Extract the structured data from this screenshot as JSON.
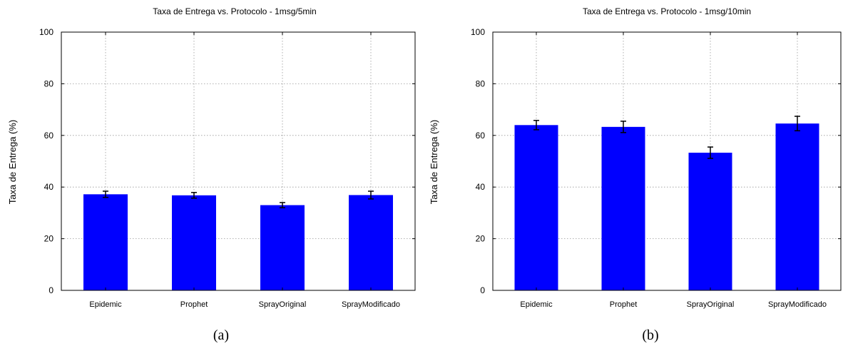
{
  "chart_data": [
    {
      "type": "bar",
      "title": "Taxa de Entrega vs. Protocolo - 1msg/5min",
      "xlabel": "",
      "ylabel": "Taxa de Entrega (%)",
      "caption": "(a)",
      "categories": [
        "Epidemic",
        "Prophet",
        "SprayOriginal",
        "SprayModificado"
      ],
      "values": [
        37.2,
        36.8,
        33.0,
        36.9
      ],
      "error": [
        1.2,
        1.1,
        1.0,
        1.5
      ],
      "ylim": [
        0,
        100
      ],
      "yticks": [
        0,
        20,
        40,
        60,
        80,
        100
      ],
      "grid": true,
      "bar_color": "#0000ff"
    },
    {
      "type": "bar",
      "title": "Taxa de Entrega vs. Protocolo - 1msg/10min",
      "xlabel": "",
      "ylabel": "Taxa de Entrega (%)",
      "caption": "(b)",
      "categories": [
        "Epidemic",
        "Prophet",
        "SprayOriginal",
        "SprayModificado"
      ],
      "values": [
        64.0,
        63.3,
        53.3,
        64.6
      ],
      "error": [
        1.8,
        2.2,
        2.2,
        2.8
      ],
      "ylim": [
        0,
        100
      ],
      "yticks": [
        0,
        20,
        40,
        60,
        80,
        100
      ],
      "grid": true,
      "bar_color": "#0000ff"
    }
  ]
}
